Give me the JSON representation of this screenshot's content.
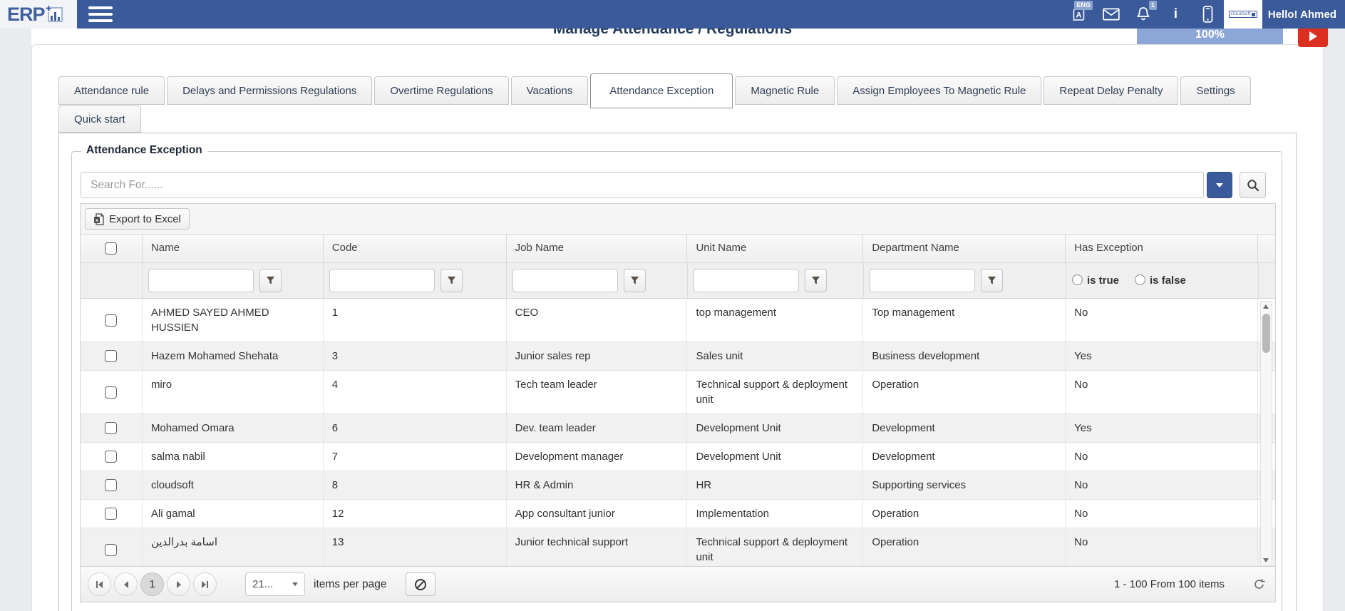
{
  "header": {
    "logo_text": "ERP",
    "language_badge": "ENG",
    "notification_count": "1",
    "avatar_text": "cloudsoft",
    "greeting": "Hello! Ahmed",
    "progress": "100%",
    "header_color": "#3b5a9a",
    "progress_color": "#8ca7d7",
    "video_button_color": "#dc2f1f"
  },
  "page": {
    "title": "Manage Attendance / Regulations"
  },
  "tabs": {
    "row1": [
      "Attendance rule",
      "Delays and Permissions Regulations",
      "Overtime Regulations",
      "Vacations",
      "Attendance Exception",
      "Magnetic Rule",
      "Assign Employees To Magnetic Rule",
      "Repeat Delay Penalty",
      "Settings"
    ],
    "row2": [
      "Quick start"
    ],
    "active": "Attendance Exception"
  },
  "section": {
    "legend": "Attendance Exception",
    "search_placeholder": "Search For......",
    "export_label": "Export to Excel"
  },
  "grid": {
    "columns": [
      "Name",
      "Code",
      "Job Name",
      "Unit Name",
      "Department Name",
      "Has Exception"
    ],
    "filter": {
      "is_true": "is true",
      "is_false": "is false"
    },
    "rows": [
      {
        "name": "AHMED SAYED AHMED HUSSIEN",
        "code": "1",
        "job": "CEO",
        "unit": "top management",
        "department": "Top management",
        "has_exception": "No"
      },
      {
        "name": "Hazem Mohamed Shehata",
        "code": "3",
        "job": "Junior sales rep",
        "unit": "Sales unit",
        "department": "Business development",
        "has_exception": "Yes"
      },
      {
        "name": "miro",
        "code": "4",
        "job": "Tech team leader",
        "unit": "Technical support & deployment unit",
        "department": "Operation",
        "has_exception": "No"
      },
      {
        "name": "Mohamed Omara",
        "code": "6",
        "job": "Dev. team leader",
        "unit": "Development Unit",
        "department": "Development",
        "has_exception": "Yes"
      },
      {
        "name": "salma nabil",
        "code": "7",
        "job": "Development manager",
        "unit": "Development Unit",
        "department": "Development",
        "has_exception": "No"
      },
      {
        "name": "cloudsoft",
        "code": "8",
        "job": "HR & Admin",
        "unit": "HR",
        "department": "Supporting services",
        "has_exception": "No"
      },
      {
        "name": "Ali gamal",
        "code": "12",
        "job": "App consultant junior",
        "unit": "Implementation",
        "department": "Operation",
        "has_exception": "No"
      },
      {
        "name": "اسامة بدرالدين",
        "code": "13",
        "job": "Junior technical support",
        "unit": "Technical support & deployment unit",
        "department": "Operation",
        "has_exception": "No"
      }
    ]
  },
  "pager": {
    "current_page": "1",
    "page_size": "21...",
    "items_per_page_label": "items per page",
    "range_label": "1 - 100 From 100 items"
  }
}
